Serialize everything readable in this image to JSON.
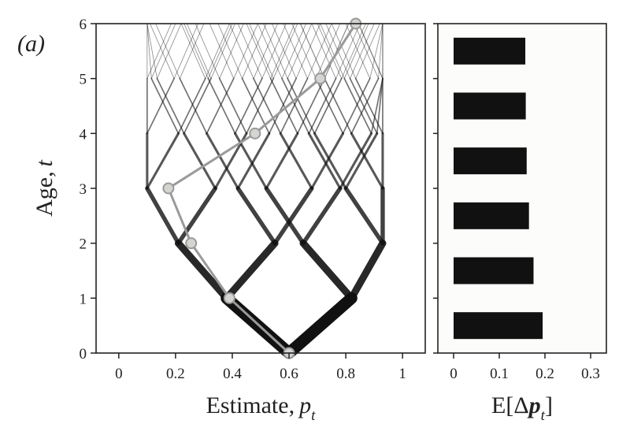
{
  "panel_label": "(a)",
  "chart_data": [
    {
      "type": "line",
      "xlabel": "Estimate,",
      "xlabel_var": "p",
      "xlabel_sub": "t",
      "ylabel": "Age,",
      "ylabel_var": "t",
      "xlim": [
        -0.08,
        1.08
      ],
      "ylim": [
        0,
        6
      ],
      "xticks": [
        0,
        0.2,
        0.4,
        0.6,
        0.8,
        1
      ],
      "xtick_labels": [
        "0",
        "0.2",
        "0.4",
        "0.6",
        "0.8",
        "1"
      ],
      "yticks": [
        0,
        1,
        2,
        3,
        4,
        5,
        6
      ],
      "ytick_labels": [
        "0",
        "1",
        "2",
        "3",
        "4",
        "5",
        "6"
      ],
      "grid": false,
      "tree": {
        "root": 0.6,
        "min_estimate": 0.1,
        "max_estimate": 0.93,
        "steps": [
          0.22,
          0.17,
          0.13,
          0.11,
          0.095,
          0.085
        ]
      },
      "highlighted_path": {
        "x": [
          0.6,
          0.39,
          0.255,
          0.175,
          0.48,
          0.71,
          0.835
        ],
        "y": [
          0,
          1,
          2,
          3,
          4,
          5,
          6
        ],
        "color": "#9a9a9a"
      },
      "colors": {
        "branches": "#111111",
        "highlight": "#9a9a9a",
        "marker_fill": "#d4d4d0"
      }
    },
    {
      "type": "bar",
      "orientation": "horizontal",
      "xlabel": "E[",
      "xlabel_delta": "Δ",
      "xlabel_var": "p",
      "xlabel_sub": "t",
      "xlabel_close": "]",
      "categories": [
        0,
        1,
        2,
        3,
        4,
        5
      ],
      "values": [
        0.195,
        0.175,
        0.165,
        0.16,
        0.158,
        0.157
      ],
      "xlim": [
        0,
        0.3
      ],
      "xticks": [
        0,
        0.1,
        0.2,
        0.3
      ],
      "xtick_labels": [
        "0",
        "0.1",
        "0.2",
        "0.3"
      ],
      "grid": false,
      "colors": {
        "bars": "#111111",
        "background": "#fcfcfa"
      }
    }
  ]
}
